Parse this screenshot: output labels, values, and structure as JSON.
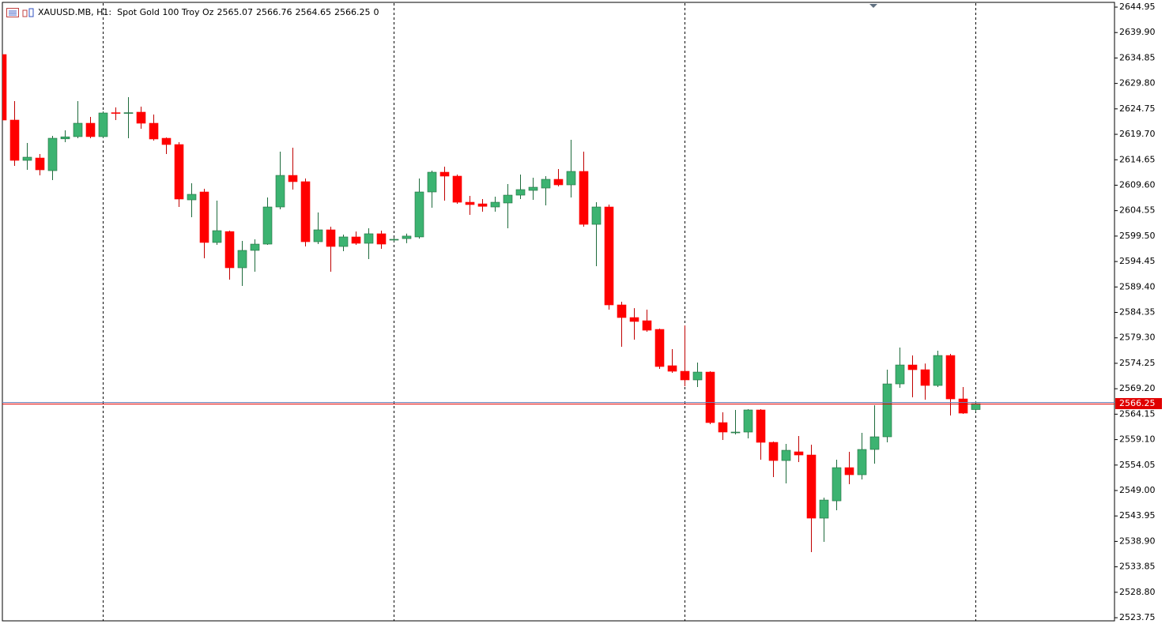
{
  "chart_data": {
    "type": "candlestick",
    "title": "XAUUSD.MB, H1:  Spot Gold 100 Troy Oz",
    "tick_volume": 0,
    "up_color": "#3cb371",
    "down_color": "#ff0000",
    "price_line_color": "#e00000",
    "ylim": [
      2523.13,
      2645.89
    ],
    "yticks": [
      2644.95,
      {
        "value": 2639.9,
        "label": "2639.90"
      },
      2634.85,
      {
        "value": 2629.8,
        "label": "2629.80"
      },
      2624.75,
      {
        "value": 2619.7,
        "label": "2619.70"
      },
      2614.65,
      {
        "value": 2609.6,
        "label": "2609.60"
      },
      2604.55,
      {
        "value": 2599.5,
        "label": "2599.50"
      },
      2594.45,
      {
        "value": 2589.4,
        "label": "2589.40"
      },
      2584.35,
      {
        "value": 2579.3,
        "label": "2579.30"
      },
      2574.25,
      {
        "value": 2569.2,
        "label": "2569.20"
      },
      2564.15,
      {
        "value": 2559.1,
        "label": "2559.10"
      },
      2554.05,
      {
        "value": 2549,
        "label": "2549.00"
      },
      2543.95,
      {
        "value": 2538.9,
        "label": "2538.90"
      },
      2533.85,
      {
        "value": 2528.8,
        "label": "2528.80"
      },
      2523.75
    ],
    "open": [
      2635.54,
      2622.53,
      2614.53,
      2615.0,
      2612.49,
      2618.8,
      2619.24,
      2621.9,
      2619.24,
      2624.0,
      2623.9,
      2624.1,
      2621.9,
      2618.92,
      2617.67,
      2606.69,
      2608.26,
      2598.23,
      2600.4,
      2593.21,
      2596.66,
      2597.91,
      2605.28,
      2611.55,
      2610.3,
      2598.38,
      2600.74,
      2597.44,
      2599.33,
      2598.07,
      2599.96,
      2598.7,
      2599.0,
      2599.33,
      2608.26,
      2612.18,
      2611.4,
      2606.22,
      2605.9,
      2605.28,
      2606.07,
      2607.63,
      2608.57,
      2609.04,
      2610.77,
      2609.67,
      2612.34,
      2601.83,
      2605.28,
      2585.84,
      2583.33,
      2582.7,
      2580.98,
      2573.77,
      2572.67,
      2570.95,
      2572.51,
      2562.48,
      2560.5,
      2560.6,
      2564.99,
      2558.56,
      2554.95,
      2556.68,
      2556.05,
      2543.51,
      2546.95,
      2553.54,
      2552.13,
      2557.15,
      2559.66,
      2570.16,
      2573.92,
      2572.98,
      2569.85,
      2575.8,
      2567.18,
      2565.07
    ],
    "high": [
      2635.54,
      2626.29,
      2617.98,
      2615.79,
      2619.39,
      2620.49,
      2626.29,
      2623.16,
      2624.25,
      2625.04,
      2627.08,
      2625.2,
      2623.63,
      2619.08,
      2618.14,
      2609.99,
      2608.89,
      2606.54,
      2600.58,
      2598.54,
      2598.86,
      2607.16,
      2616.26,
      2617.04,
      2610.93,
      2604.18,
      2601.36,
      2599.8,
      2600.4,
      2601.05,
      2600.58,
      2599.2,
      2600.0,
      2610.93,
      2612.49,
      2613.28,
      2611.71,
      2607.48,
      2606.85,
      2607.32,
      2609.83,
      2611.71,
      2611.09,
      2611.4,
      2612.8,
      2618.61,
      2616.26,
      2606.22,
      2605.75,
      2586.47,
      2585.2,
      2584.9,
      2581.14,
      2577.06,
      2581.76,
      2574.4,
      2572.67,
      2564.52,
      2564.99,
      2565.15,
      2565.15,
      2558.72,
      2558.25,
      2559.81,
      2558.09,
      2547.58,
      2555.11,
      2556.68,
      2560.44,
      2565.93,
      2572.98,
      2577.37,
      2575.8,
      2574.2,
      2576.75,
      2576.12,
      2569.53,
      2566.76
    ],
    "low": [
      2622.53,
      2613.43,
      2612.65,
      2611.55,
      2610.61,
      2618.14,
      2618.92,
      2618.92,
      2618.92,
      2622.53,
      2618.92,
      2620.8,
      2618.45,
      2615.79,
      2605.28,
      2603.24,
      2595.09,
      2597.76,
      2590.86,
      2589.6,
      2592.43,
      2597.76,
      2604.81,
      2608.73,
      2597.44,
      2597.91,
      2592.43,
      2596.5,
      2597.76,
      2594.93,
      2596.97,
      2598.4,
      2598.1,
      2599.0,
      2605.13,
      2606.54,
      2605.91,
      2603.71,
      2604.34,
      2604.34,
      2601.05,
      2606.85,
      2606.69,
      2605.6,
      2609.36,
      2607.16,
      2601.36,
      2593.52,
      2584.9,
      2577.53,
      2578.94,
      2580.51,
      2573.14,
      2572.36,
      2569.69,
      2569.53,
      2562.17,
      2559.03,
      2560.13,
      2559.34,
      2555.11,
      2551.66,
      2550.41,
      2554.64,
      2536.77,
      2538.8,
      2545.08,
      2550.25,
      2551.19,
      2554.33,
      2558.56,
      2569.38,
      2567.5,
      2567.03,
      2569.53,
      2563.89,
      2564.2,
      2564.65
    ],
    "close": [
      2622.53,
      2614.53,
      2615.16,
      2612.65,
      2618.92,
      2619.2,
      2621.9,
      2619.24,
      2623.94,
      2623.9,
      2624.0,
      2621.9,
      2618.77,
      2617.67,
      2606.85,
      2607.79,
      2598.23,
      2600.58,
      2593.21,
      2596.66,
      2597.91,
      2605.28,
      2611.55,
      2610.3,
      2598.38,
      2600.74,
      2597.44,
      2599.33,
      2598.07,
      2599.96,
      2597.91,
      2598.86,
      2599.5,
      2608.26,
      2612.18,
      2611.4,
      2606.22,
      2605.75,
      2605.4,
      2606.22,
      2607.63,
      2608.73,
      2609.2,
      2610.77,
      2609.67,
      2612.34,
      2601.83,
      2605.28,
      2585.84,
      2583.33,
      2582.55,
      2580.82,
      2573.61,
      2572.67,
      2570.95,
      2572.51,
      2562.48,
      2560.6,
      2560.6,
      2564.99,
      2558.56,
      2554.95,
      2556.99,
      2556.05,
      2543.51,
      2547.11,
      2553.54,
      2552.13,
      2557.15,
      2559.66,
      2570.16,
      2573.92,
      2572.98,
      2569.85,
      2575.8,
      2567.18,
      2564.36,
      2566.25
    ]
  }
}
